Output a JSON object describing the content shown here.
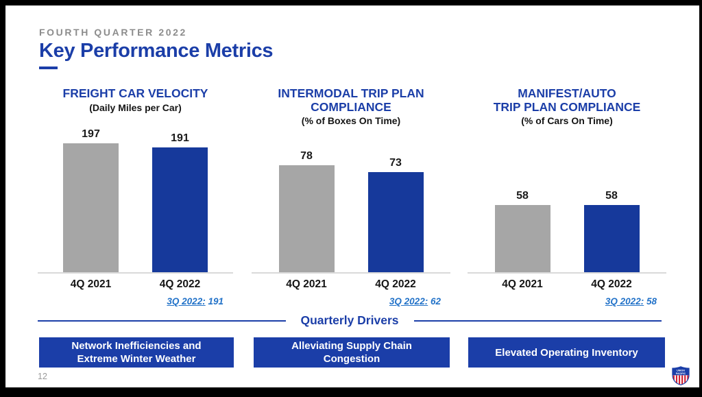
{
  "slide": {
    "eyebrow": "FOURTH QUARTER 2022",
    "title": "Key Performance Metrics",
    "page_number": "12"
  },
  "colors": {
    "brand_blue": "#1B3EA8",
    "bar_blue": "#16399B",
    "bar_gray": "#A6A6A6",
    "note_blue": "#2272C8",
    "baseline_gray": "#D9D9D9",
    "eyebrow_gray": "#8C8C8C"
  },
  "chart_data": [
    {
      "type": "bar",
      "title": "FREIGHT CAR VELOCITY",
      "subtitle": "(Daily Miles per Car)",
      "categories": [
        "4Q 2021",
        "4Q 2022"
      ],
      "values": [
        197,
        191
      ],
      "series_colors": [
        "#A6A6A6",
        "#16399B"
      ],
      "note_label": "3Q 2022:",
      "note_value": "191",
      "ylim": [
        0,
        210
      ],
      "grid": false,
      "legend": false
    },
    {
      "type": "bar",
      "title": "INTERMODAL TRIP PLAN\nCOMPLIANCE",
      "subtitle": "(% of Boxes On Time)",
      "categories": [
        "4Q 2021",
        "4Q 2022"
      ],
      "values": [
        78,
        73
      ],
      "series_colors": [
        "#A6A6A6",
        "#16399B"
      ],
      "note_label": "3Q 2022:",
      "note_value": "62",
      "ylim": [
        0,
        100
      ],
      "grid": false,
      "legend": false
    },
    {
      "type": "bar",
      "title": "MANIFEST/AUTO\nTRIP PLAN COMPLIANCE",
      "subtitle": "(% of Cars On Time)",
      "categories": [
        "4Q 2021",
        "4Q 2022"
      ],
      "values": [
        58,
        58
      ],
      "series_colors": [
        "#A6A6A6",
        "#16399B"
      ],
      "note_label": "3Q 2022:",
      "note_value": "58",
      "ylim": [
        0,
        118
      ],
      "grid": false,
      "legend": false
    }
  ],
  "drivers": {
    "heading": "Quarterly Drivers",
    "boxes": [
      "Network Inefficiencies and Extreme Winter Weather",
      "Alleviating Supply Chain Congestion",
      "Elevated Operating Inventory"
    ]
  },
  "logo": {
    "name": "union-pacific-shield",
    "line1": "UNION",
    "line2": "PACIFIC"
  }
}
